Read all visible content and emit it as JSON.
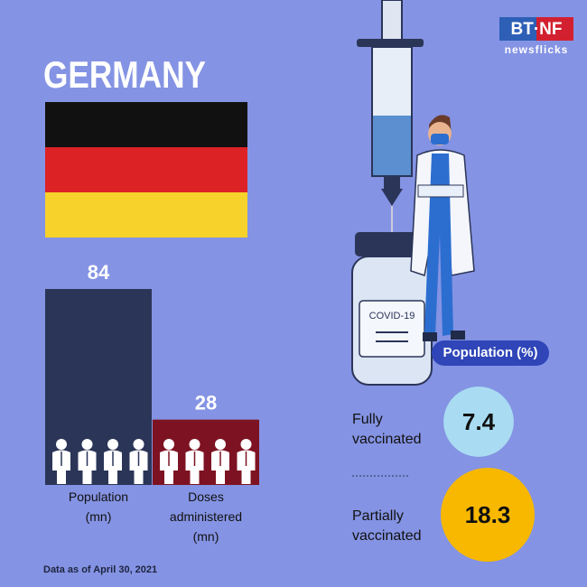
{
  "title": "GERMANY",
  "logo": {
    "mark": "BT·NF",
    "name": "newsflicks"
  },
  "chart_data": {
    "type": "bar",
    "categories": [
      "Population (mn)",
      "Doses administered (mn)"
    ],
    "values": [
      84,
      28
    ],
    "colors": [
      "#2b3558",
      "#7d1322"
    ]
  },
  "vial_label": "COVID-19",
  "stats": {
    "title": "Population (%)",
    "items": [
      {
        "label": "Fully vaccinated",
        "value": 7.4,
        "color": "#a9dcf2"
      },
      {
        "label": "Partially vaccinated",
        "value": 18.3,
        "color": "#f8b800"
      }
    ]
  },
  "note": "Data as of April 30, 2021"
}
